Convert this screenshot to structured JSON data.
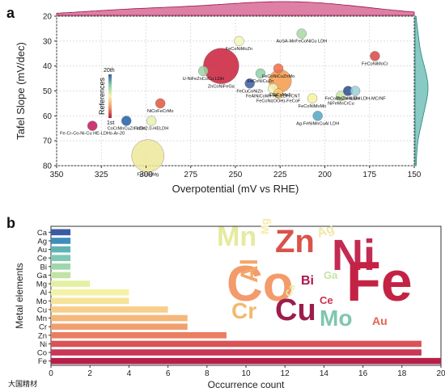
{
  "panels": [
    "a",
    "b"
  ],
  "watermark": "大国精材",
  "chart_data": [
    {
      "type": "scatter",
      "xlabel": "Overpotential (mV vs RHE)",
      "ylabel": "Tafel Slope (mV/dec)",
      "xlim": [
        350,
        150
      ],
      "ylim": [
        80,
        20
      ],
      "x_ticks": [
        350,
        325,
        300,
        275,
        250,
        225,
        200,
        175,
        150
      ],
      "y_ticks": [
        20,
        30,
        40,
        50,
        60,
        70,
        80
      ],
      "colorbar": {
        "title": "References",
        "top_label": "20th",
        "bottom_label": "1st"
      },
      "points": [
        {
          "label": "Fe-Cr-Co-Ni-Cu HE-LDHs-Ar-20",
          "x": 330,
          "y": 64,
          "ref": 1,
          "size": 6,
          "color": "#c2185b"
        },
        {
          "label": "CoCrMnCuZn LDH",
          "x": 311,
          "y": 62,
          "ref": 19,
          "size": 6,
          "color": "#1f5fa8"
        },
        {
          "label": "FeCoNiMg",
          "x": 299,
          "y": 76,
          "ref": 8,
          "size": 20,
          "color": "#eee89a"
        },
        {
          "label": "FeCo2.0-HELDH",
          "x": 297,
          "y": 62,
          "ref": 9,
          "size": 6,
          "color": "#e9f0b3"
        },
        {
          "label": "NiCoFeCrMo",
          "x": 292,
          "y": 55,
          "ref": 4,
          "size": 6,
          "color": "#e0573d"
        },
        {
          "label": "U-NiFeZnCoCu LDH",
          "x": 268,
          "y": 42,
          "ref": 14,
          "size": 6,
          "color": "#9ed3a3"
        },
        {
          "label": "ZnCoNiFeGa",
          "x": 258,
          "y": 40,
          "ref": 2,
          "size": 22,
          "color": "#c91f3a"
        },
        {
          "label": "FeCoNiMoZn",
          "x": 248,
          "y": 30,
          "ref": 10,
          "size": 6,
          "color": "#f4f4b8"
        },
        {
          "label": "FeCuCoNiZn",
          "x": 242,
          "y": 47,
          "ref": 18,
          "size": 6,
          "color": "#3a5aa5"
        },
        {
          "label": "FeCoNiCuZn",
          "x": 236,
          "y": 43,
          "ref": 15,
          "size": 6,
          "color": "#8fd0a8"
        },
        {
          "label": "FeAlNiCoMn HE-LDH/CNT",
          "x": 229,
          "y": 49,
          "ref": 11,
          "size": 6,
          "color": "#f4f4b8"
        },
        {
          "label": "FeCoNiCuZnMo",
          "x": 226,
          "y": 41,
          "ref": 5,
          "size": 6,
          "color": "#f06d4b"
        },
        {
          "label": "ENiCoMnF",
          "x": 225,
          "y": 46,
          "ref": 6,
          "size": 14,
          "color": "#f49a4a"
        },
        {
          "label": "FeCoNi(OOH)-FeCoF",
          "x": 226,
          "y": 51,
          "ref": 7,
          "size": 6,
          "color": "#fbc86a"
        },
        {
          "label": "AuSA-MnFeCoNiCu LDH",
          "x": 213,
          "y": 27,
          "ref": 13,
          "size": 6,
          "color": "#a7d8a3"
        },
        {
          "label": "FeCoNiMoMn",
          "x": 207,
          "y": 53,
          "ref": 9,
          "size": 6,
          "color": "#f7f2a0"
        },
        {
          "label": "Ag-FeNiMnCuAl LDH",
          "x": 204,
          "y": 60,
          "ref": 16,
          "size": 6,
          "color": "#55a6c6"
        },
        {
          "label": "NiFeMnCrCu",
          "x": 191,
          "y": 52,
          "ref": 12,
          "size": 6,
          "color": "#c9e7a6"
        },
        {
          "label": "ZnCoNiLDH",
          "x": 187,
          "y": 50,
          "ref": 20,
          "size": 6,
          "color": "#2a4a8e"
        },
        {
          "label": "FeCoMnZn-NiMo LDH-MC/NF",
          "x": 183,
          "y": 50,
          "ref": 17,
          "size": 6,
          "color": "#9bd0d8"
        },
        {
          "label": "FeCoNiMoCr",
          "x": 172,
          "y": 36,
          "ref": 3,
          "size": 6,
          "color": "#d94545"
        }
      ]
    },
    {
      "type": "bar",
      "orientation": "horizontal",
      "xlabel": "Occurrence count",
      "ylabel": "Metal elements",
      "xlim": [
        0,
        20
      ],
      "x_ticks": [
        0,
        2,
        4,
        6,
        8,
        10,
        12,
        14,
        16,
        18,
        20
      ],
      "categories": [
        "Ca",
        "Ag",
        "Au",
        "Ce",
        "Bi",
        "Ga",
        "Mg",
        "Al",
        "Mo",
        "Cu",
        "Mn",
        "Cr",
        "Zn",
        "Ni",
        "Co",
        "Fe"
      ],
      "values": [
        1,
        1,
        1,
        1,
        1,
        1,
        2,
        4,
        4,
        6,
        7,
        7,
        9,
        19,
        19,
        20
      ],
      "colors": [
        "#3b5ba5",
        "#3f8dbd",
        "#5fb3b6",
        "#7fc9b4",
        "#9fd6ad",
        "#c2e3a7",
        "#e3f0a3",
        "#f5f2a6",
        "#f6e39a",
        "#f8ce8a",
        "#f6b77a",
        "#f29f6f",
        "#ea7e5e",
        "#d95357",
        "#c83856",
        "#b61f4a"
      ]
    },
    {
      "type": "wordcloud",
      "words": [
        {
          "text": "Ni",
          "count": 19,
          "color": "#c42a52"
        },
        {
          "text": "Co",
          "count": 19,
          "color": "#f39b6a"
        },
        {
          "text": "Fe",
          "count": 20,
          "color": "#c42244"
        },
        {
          "text": "Zn",
          "count": 9,
          "color": "#d9534a"
        },
        {
          "text": "Mn",
          "count": 7,
          "color": "#e6ea9f"
        },
        {
          "text": "Cr",
          "count": 7,
          "color": "#f4b86e"
        },
        {
          "text": "Cu",
          "count": 6,
          "color": "#9c1d4b"
        },
        {
          "text": "Mo",
          "count": 4,
          "color": "#7fc7ad"
        },
        {
          "text": "Al",
          "count": 4,
          "color": "#f3a76b"
        },
        {
          "text": "Mg",
          "count": 2,
          "color": "#f7ecac"
        },
        {
          "text": "Ag",
          "count": 1,
          "color": "#f2e7a4"
        },
        {
          "text": "Bi",
          "count": 1,
          "color": "#b3154a"
        },
        {
          "text": "Ga",
          "count": 1,
          "color": "#c3e4a5"
        },
        {
          "text": "Ce",
          "count": 1,
          "color": "#c83152"
        },
        {
          "text": "Ca",
          "count": 1,
          "color": "#e6f2b0"
        },
        {
          "text": "Au",
          "count": 1,
          "color": "#e66248"
        }
      ]
    }
  ]
}
